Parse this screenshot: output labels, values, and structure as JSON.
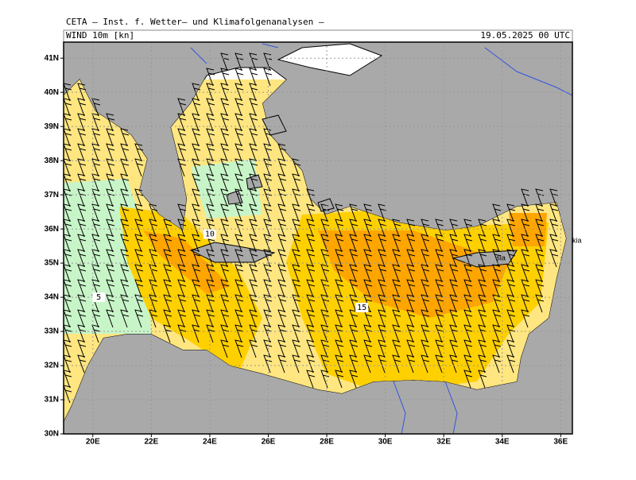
{
  "header": {
    "title": "CETA – Inst. f. Wetter– und Klimafolgenanalysen –",
    "field": "WIND 10m [kn]",
    "valid_time": "19.05.2025 00 UTC"
  },
  "map": {
    "xlim": [
      19,
      36.4
    ],
    "ylim": [
      30,
      41.47
    ],
    "xticks": [
      {
        "value": 20,
        "label": "20E"
      },
      {
        "value": 22,
        "label": "22E"
      },
      {
        "value": 24,
        "label": "24E"
      },
      {
        "value": 26,
        "label": "26E"
      },
      {
        "value": 28,
        "label": "28E"
      },
      {
        "value": 30,
        "label": "30E"
      },
      {
        "value": 32,
        "label": "32E"
      },
      {
        "value": 34,
        "label": "34E"
      },
      {
        "value": 36,
        "label": "36E"
      }
    ],
    "yticks": [
      {
        "value": 30,
        "label": "30N"
      },
      {
        "value": 31,
        "label": "31N"
      },
      {
        "value": 32,
        "label": "32N"
      },
      {
        "value": 33,
        "label": "33N"
      },
      {
        "value": 34,
        "label": "34N"
      },
      {
        "value": 35,
        "label": "35N"
      },
      {
        "value": 36,
        "label": "36N"
      },
      {
        "value": 37,
        "label": "37N"
      },
      {
        "value": 38,
        "label": "38N"
      },
      {
        "value": 39,
        "label": "39N"
      },
      {
        "value": 40,
        "label": "40N"
      },
      {
        "value": 41,
        "label": "41N"
      }
    ],
    "grid": true,
    "contour_labels": [
      {
        "value": 5,
        "lon": 20.2,
        "lat": 34.0
      },
      {
        "value": 10,
        "lon": 24.0,
        "lat": 35.85
      },
      {
        "value": 15,
        "lon": 29.2,
        "lat": 33.7
      }
    ],
    "place_labels": [
      {
        "text": "sia",
        "lon": 33.8,
        "lat": 35.14
      },
      {
        "text": "kia",
        "lon": 36.4,
        "lat": 35.65
      }
    ]
  }
}
